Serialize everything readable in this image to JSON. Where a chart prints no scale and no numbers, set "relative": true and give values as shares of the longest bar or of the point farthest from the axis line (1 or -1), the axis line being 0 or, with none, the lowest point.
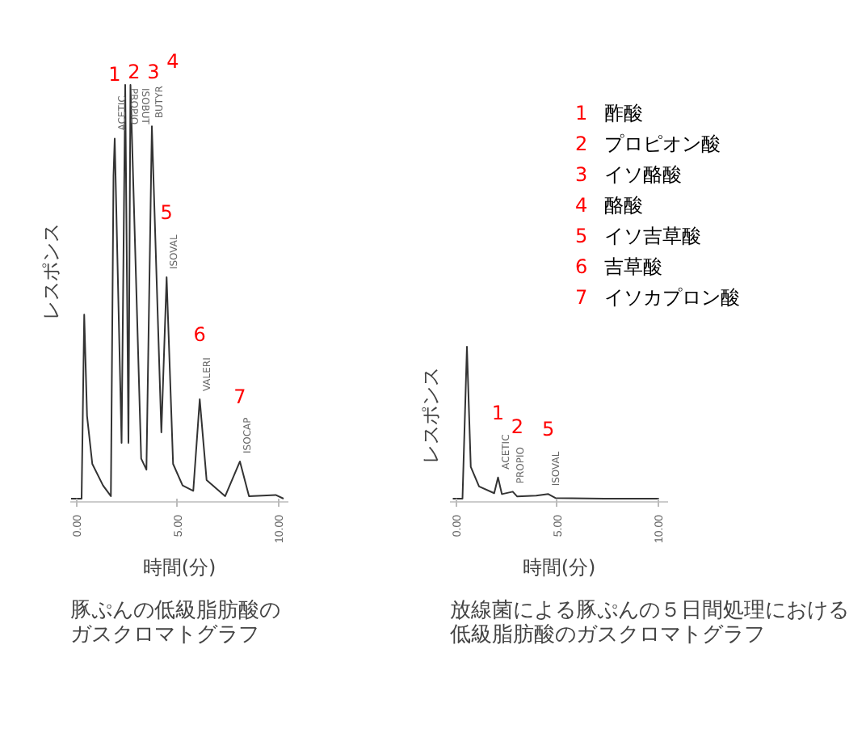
{
  "chart_data": [
    {
      "type": "line",
      "relative": true,
      "title": "豚ぷんの低級脂肪酸のガスクロマトグラフ",
      "xlabel": "時間(分)",
      "ylabel": "レスポンス",
      "xlim": [
        -0.3,
        10.5
      ],
      "xticks": [
        {
          "value": 0,
          "label": "0.00"
        },
        {
          "value": 5,
          "label": "5.00"
        },
        {
          "value": 10,
          "label": "10.00"
        }
      ],
      "tick_labels": "x",
      "grid": false,
      "series": [
        {
          "color": "#333333",
          "x": [
            -0.26,
            0,
            0.26,
            0.39,
            0.53,
            0.79,
            1.32,
            1.71,
            1.84,
            1.9,
            2.24,
            2.42,
            2.58,
            2.68,
            3.21,
            3.47,
            3.74,
            4.21,
            4.47,
            4.79,
            5.26,
            5.79,
            6.11,
            6.45,
            7.37,
            8.1,
            8.55,
            9.87,
            10.26
          ],
          "values": [
            0,
            0,
            0,
            0.445,
            0.2,
            0.084,
            0.032,
            0.006,
            0.78,
            0.87,
            0.135,
            1,
            0.135,
            1,
            0.097,
            0.07,
            0.9,
            0.16,
            0.535,
            0.084,
            0.032,
            0.019,
            0.24,
            0.045,
            0.006,
            0.09,
            0.006,
            0.009,
            0
          ]
        }
      ],
      "annotations": [
        {
          "text": "1",
          "x": 1.9,
          "y": 0.87
        },
        {
          "text": "2",
          "x": 2.42,
          "y": 1
        },
        {
          "text": "3",
          "x": 2.68,
          "y": 1
        },
        {
          "text": "4",
          "x": 3.74,
          "y": 0.9
        },
        {
          "text": "5",
          "x": 4.47,
          "y": 0.535
        },
        {
          "text": "6",
          "x": 6.11,
          "y": 0.24
        },
        {
          "text": "7",
          "x": 8.1,
          "y": 0.09
        },
        {
          "text": "ACETIC",
          "x": 1.9,
          "y": 0.87
        },
        {
          "text": "PROPIO",
          "x": 2.42,
          "y": 1
        },
        {
          "text": "ISOBUT",
          "x": 2.68,
          "y": 1
        },
        {
          "text": "BUTYR",
          "x": 3.74,
          "y": 0.9
        },
        {
          "text": "ISOVAL",
          "x": 4.47,
          "y": 0.535
        },
        {
          "text": "VALERI",
          "x": 6.11,
          "y": 0.24
        },
        {
          "text": "ISOCAP",
          "x": 8.1,
          "y": 0.09
        }
      ]
    },
    {
      "type": "line",
      "relative": true,
      "title": "放線菌による豚ぷんの５日間処理における低級脂肪酸のガスクロマトグラフ",
      "xlabel": "時間(分)",
      "ylabel": "レスポンス",
      "xlim": [
        -0.3,
        10.5
      ],
      "xticks": [
        {
          "value": 0,
          "label": "0.00"
        },
        {
          "value": 5,
          "label": "5.00"
        },
        {
          "value": 10,
          "label": "10.00"
        }
      ],
      "tick_labels": "x",
      "grid": false,
      "series": [
        {
          "color": "#333333",
          "x": [
            -0.16,
            0.05,
            0.32,
            0.54,
            0.73,
            1.14,
            1.89,
            2.08,
            2.27,
            2.81,
            3.03,
            3.97,
            4.57,
            4.92,
            7.35,
            10.05
          ],
          "values": [
            0,
            0,
            0,
            1,
            0.21,
            0.08,
            0.036,
            0.14,
            0.03,
            0.046,
            0.014,
            0.02,
            0.03,
            0.004,
            0,
            0
          ]
        }
      ],
      "annotations": [
        {
          "text": "1",
          "x": 2.08,
          "y": 0.14
        },
        {
          "text": "2",
          "x": 2.81,
          "y": 0.046
        },
        {
          "text": "5",
          "x": 4.57,
          "y": 0.03
        },
        {
          "text": "ACETIC",
          "x": 2.08,
          "y": 0.14
        },
        {
          "text": "PROPIO",
          "x": 2.81,
          "y": 0.046
        },
        {
          "text": "ISOVAL",
          "x": 4.57,
          "y": 0.03
        },
        "1 酢酸",
        "2 プロピオン酸",
        "3 イソ酪酸",
        "4 酪酸",
        "5 イソ吉草酸",
        "6 吉草酸",
        "7 イソカプロン酸"
      ]
    }
  ]
}
